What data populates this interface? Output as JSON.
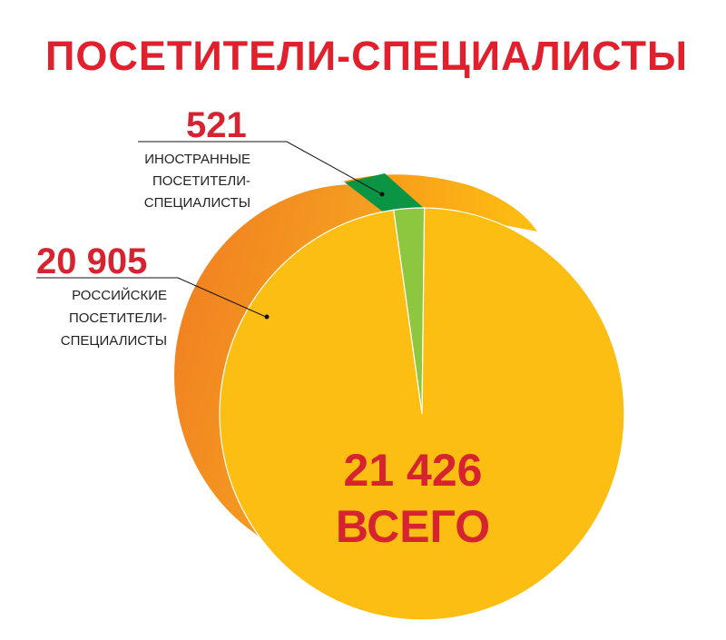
{
  "chart_data": {
    "type": "pie",
    "title": "ПОСЕТИТЕЛИ-СПЕЦИАЛИСТЫ",
    "total": {
      "value": "21 426",
      "label": "ВСЕГО"
    },
    "slices": [
      {
        "value_text": "20 905",
        "value": 20905,
        "label_lines": [
          "РОССИЙСКИЕ",
          "ПОСЕТИТЕЛИ-",
          "СПЕЦИАЛИСТЫ"
        ],
        "color": "#fcbe12"
      },
      {
        "value_text": "521",
        "value": 521,
        "label_lines": [
          "ИНОСТРАННЫЕ",
          "ПОСЕТИТЕЛИ-",
          "СПЕЦИАЛИСТЫ"
        ],
        "color": "#8dc63f"
      }
    ]
  }
}
